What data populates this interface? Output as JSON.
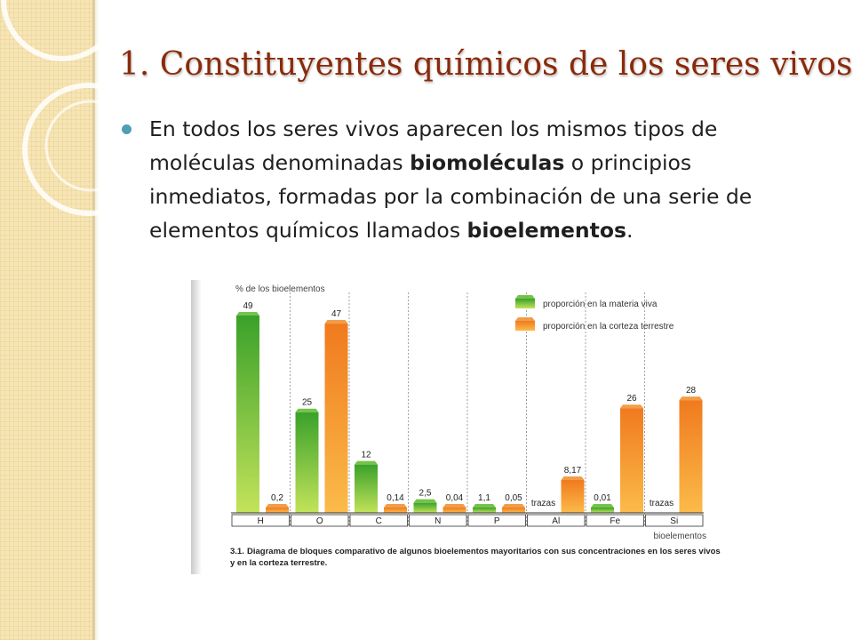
{
  "slide": {
    "title": "1. Constituyentes químicos de los seres vivos",
    "bullet": {
      "text_1": "En todos los seres vivos aparecen los mismos tipos de moléculas denominadas ",
      "bold_1": "biomoléculas",
      "text_2": " o principios inmediatos, formadas por la combinación de una serie de elementos químicos llamados ",
      "bold_2": "bioelementos",
      "text_3": "."
    }
  },
  "colors": {
    "title": "#8a2a0a",
    "bullet": "#4d9fb8",
    "green": "#5cb82a",
    "orange": "#f08c28"
  },
  "chart_data": {
    "type": "bar",
    "ylabel": "% de los bioelementos",
    "xlabel": "bioelementos",
    "categories": [
      "H",
      "O",
      "C",
      "N",
      "P",
      "Al",
      "Fe",
      "Si"
    ],
    "series": [
      {
        "name": "proporción en la materia viva",
        "values": [
          49,
          25,
          12,
          2.5,
          1.1,
          0,
          0.01,
          0
        ],
        "labels": [
          "49",
          "25",
          "12",
          "2,5",
          "1,1",
          "trazas",
          "0,01",
          "trazas"
        ]
      },
      {
        "name": "proporción en la corteza terrestre",
        "values": [
          0.2,
          47,
          0.14,
          0.04,
          0.05,
          8.17,
          26,
          28
        ],
        "labels": [
          "0,2",
          "47",
          "0,14",
          "0,04",
          "0,05",
          "8,17",
          "26",
          "28"
        ]
      }
    ],
    "ylim": [
      0,
      49
    ],
    "caption_num": "3.1.",
    "caption": "Diagrama de bloques comparativo de algunos bioelementos mayoritarios con sus concentraciones en los seres vivos y en la corteza terrestre.",
    "legend_position": "top-right",
    "grid": false
  }
}
